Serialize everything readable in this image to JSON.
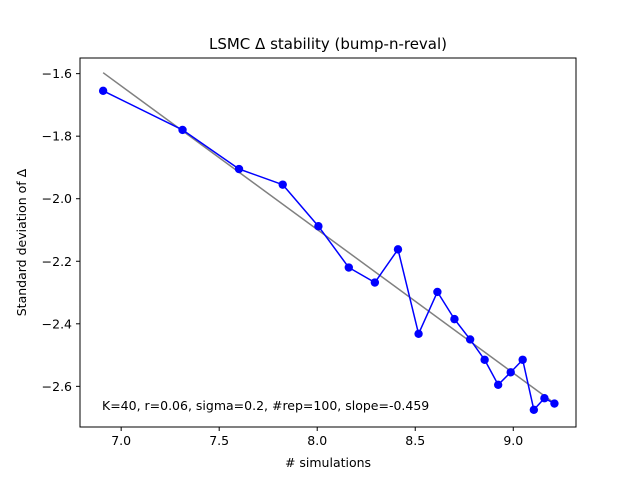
{
  "chart_data": {
    "type": "line",
    "title": "LSMC Δ stability (bump-n-reval)",
    "xlabel": "# simulations",
    "ylabel": "Standard deviation of Δ",
    "xlim": [
      6.79,
      9.32
    ],
    "ylim": [
      -2.73,
      -1.55
    ],
    "xticks": [
      7.0,
      7.5,
      8.0,
      8.5,
      9.0
    ],
    "xtick_labels": [
      "7.0",
      "7.5",
      "8.0",
      "8.5",
      "9.0"
    ],
    "yticks": [
      -1.6,
      -1.8,
      -2.0,
      -2.2,
      -2.4,
      -2.6
    ],
    "ytick_labels": [
      "−1.6",
      "−1.8",
      "−2.0",
      "−2.2",
      "−2.4",
      "−2.6"
    ],
    "grid": false,
    "annotation": "K=40, r=0.06, sigma=0.2, #rep=100, slope=-0.459",
    "series": [
      {
        "color": "#0000ff",
        "marker": "circle",
        "x": [
          6.908,
          7.313,
          7.601,
          7.824,
          8.006,
          8.161,
          8.294,
          8.412,
          8.517,
          8.613,
          8.7,
          8.78,
          8.854,
          8.923,
          8.987,
          9.048,
          9.105,
          9.159,
          9.21
        ],
        "y": [
          -1.655,
          -1.78,
          -1.905,
          -1.955,
          -2.088,
          -2.22,
          -2.268,
          -2.162,
          -2.432,
          -2.298,
          -2.385,
          -2.45,
          -2.515,
          -2.595,
          -2.555,
          -2.515,
          -2.675,
          -2.638,
          -2.655
        ]
      },
      {
        "color": "#808080",
        "marker": "none",
        "x": [
          6.908,
          9.21
        ],
        "y": [
          -1.597,
          -2.654
        ]
      }
    ]
  }
}
